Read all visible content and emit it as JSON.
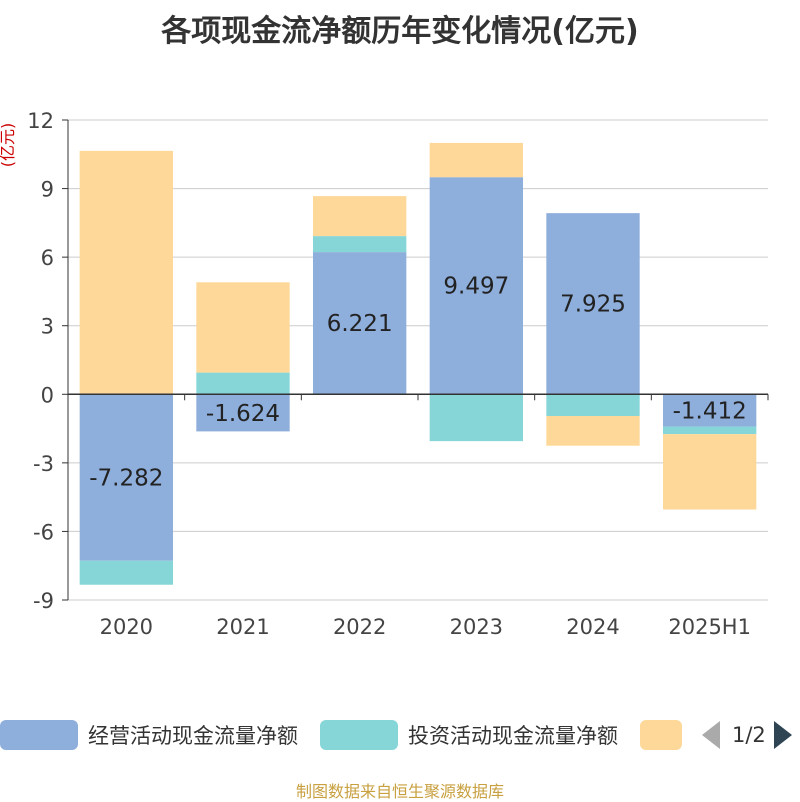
{
  "chart_data": {
    "type": "bar",
    "stacked": true,
    "title": "各项现金流净额历年变化情况(亿元)",
    "ylabel": "(亿元)",
    "categories": [
      "2020",
      "2021",
      "2022",
      "2023",
      "2024",
      "2025H1"
    ],
    "ylim": [
      -9,
      12
    ],
    "yticks": [
      12,
      9,
      6,
      3,
      0,
      -3,
      -6,
      -9
    ],
    "grid": true,
    "series": [
      {
        "name": "经营活动现金流量净额",
        "color": "#8eaedb",
        "values": [
          -7.282,
          -1.624,
          6.221,
          9.497,
          7.925,
          -1.412
        ],
        "data_labels": [
          "-7.282",
          "-1.624",
          "6.221",
          "9.497",
          "7.925",
          "-1.412"
        ]
      },
      {
        "name": "投资活动现金流量净额",
        "color": "#86d6d8",
        "values": [
          -1.05,
          0.95,
          0.7,
          -2.05,
          -0.95,
          -0.33
        ]
      },
      {
        "name": "",
        "color": "#fdd898",
        "values": [
          10.65,
          3.95,
          1.75,
          1.5,
          -1.3,
          -3.3
        ]
      }
    ]
  },
  "legend": {
    "items": [
      {
        "label": "经营活动现金流量净额",
        "color": "#8eaedb"
      },
      {
        "label": "投资活动现金流量净额",
        "color": "#86d6d8"
      },
      {
        "label": "",
        "color": "#fdd898"
      }
    ],
    "page_indicator": "1/2"
  },
  "footer": "制图数据来自恒生聚源数据库"
}
